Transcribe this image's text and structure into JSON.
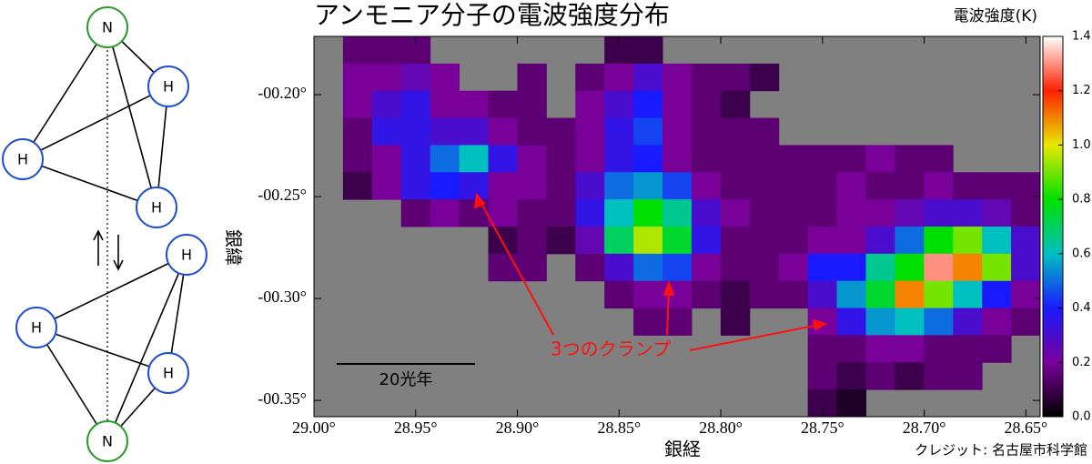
{
  "chart_data": {
    "type": "heatmap",
    "title": "アンモニア分子の電波強度分布",
    "colorbar_label": "電波強度(K)",
    "x_label": "銀経",
    "y_label": "銀緯",
    "credit": "クレジット: 名古屋市科学館",
    "scale_bar_label": "20光年",
    "annotation": "3つのクランプ",
    "xlim": [
      29.0,
      28.643
    ],
    "ylim": [
      -0.358,
      -0.1714
    ],
    "xticks": [
      {
        "value": 29.0,
        "label": "29.00°"
      },
      {
        "value": 28.95,
        "label": "28.95°"
      },
      {
        "value": 28.9,
        "label": "28.90°"
      },
      {
        "value": 28.85,
        "label": "28.85°"
      },
      {
        "value": 28.8,
        "label": "28.80°"
      },
      {
        "value": 28.75,
        "label": "28.75°"
      },
      {
        "value": 28.7,
        "label": "28.70°"
      },
      {
        "value": 28.65,
        "label": "28.65°"
      }
    ],
    "yticks": [
      {
        "value": -0.2,
        "label": "-00.20°"
      },
      {
        "value": -0.25,
        "label": "-00.25°"
      },
      {
        "value": -0.3,
        "label": "-00.30°"
      },
      {
        "value": -0.35,
        "label": "-00.35°"
      }
    ],
    "clim": [
      0,
      1.4
    ],
    "cticks": [
      {
        "value": 0,
        "label": "0.0"
      },
      {
        "value": 0.2,
        "label": "0.2"
      },
      {
        "value": 0.4,
        "label": "0.4"
      },
      {
        "value": 0.6,
        "label": "0.6"
      },
      {
        "value": 0.8,
        "label": "0.8"
      },
      {
        "value": 1.0,
        "label": "1.0"
      },
      {
        "value": 1.2,
        "label": "1.2"
      },
      {
        "value": 1.4,
        "label": "1.4"
      }
    ],
    "colors": [
      "#000000",
      "#7a009a",
      "#1a1aff",
      "#00c0c0",
      "#00e000",
      "#e8e800",
      "#ff2000",
      "#ffffff"
    ],
    "background": "#808080",
    "z": [
      [
        null,
        0.15,
        0.15,
        0.15,
        null,
        null,
        null,
        null,
        null,
        null,
        0.1,
        0.1,
        null,
        null,
        null,
        null,
        null,
        null,
        null,
        null,
        null,
        null,
        null,
        null,
        null
      ],
      [
        null,
        0.2,
        0.2,
        0.25,
        0.2,
        null,
        null,
        0.15,
        null,
        0.15,
        0.2,
        0.3,
        0.2,
        0.15,
        0.15,
        0.1,
        null,
        null,
        null,
        null,
        null,
        null,
        null,
        null,
        null
      ],
      [
        null,
        0.2,
        0.3,
        0.35,
        0.2,
        0.2,
        0.15,
        0.15,
        null,
        0.2,
        0.3,
        0.4,
        0.2,
        0.15,
        0.1,
        null,
        null,
        null,
        null,
        null,
        null,
        null,
        null,
        null,
        null
      ],
      [
        null,
        0.15,
        0.35,
        0.35,
        0.3,
        0.3,
        0.2,
        0.15,
        0.15,
        0.2,
        0.35,
        0.45,
        0.2,
        0.15,
        0.15,
        0.15,
        null,
        null,
        null,
        null,
        null,
        null,
        null,
        null,
        null
      ],
      [
        null,
        0.15,
        0.2,
        0.35,
        0.5,
        0.6,
        0.35,
        0.2,
        0.15,
        0.2,
        0.35,
        0.4,
        0.2,
        0.15,
        0.15,
        0.15,
        0.15,
        0.15,
        0.15,
        0.2,
        0.15,
        0.15,
        null,
        null,
        null
      ],
      [
        null,
        0.1,
        0.2,
        0.35,
        0.4,
        0.35,
        0.2,
        0.2,
        0.15,
        0.3,
        0.5,
        0.55,
        0.45,
        0.2,
        0.15,
        0.15,
        0.15,
        0.15,
        0.2,
        0.15,
        0.15,
        0.2,
        0.15,
        0.15,
        0.15
      ],
      [
        null,
        null,
        null,
        0.15,
        0.2,
        0.15,
        0.2,
        0.15,
        0.15,
        0.35,
        0.6,
        0.8,
        0.65,
        0.3,
        0.2,
        0.15,
        0.15,
        0.15,
        0.2,
        0.2,
        0.25,
        0.3,
        0.3,
        0.25,
        0.15
      ],
      [
        null,
        null,
        null,
        null,
        null,
        null,
        0.1,
        0.15,
        0.1,
        0.25,
        0.7,
        0.95,
        0.75,
        0.35,
        0.15,
        0.15,
        0.15,
        0.2,
        0.2,
        0.3,
        0.5,
        0.8,
        0.9,
        0.6,
        0.3
      ],
      [
        null,
        null,
        null,
        null,
        null,
        null,
        0.15,
        0.15,
        null,
        0.15,
        0.3,
        0.5,
        0.45,
        0.2,
        0.15,
        0.15,
        0.2,
        0.4,
        0.4,
        0.65,
        0.8,
        1.3,
        1.1,
        0.9,
        0.3
      ],
      [
        null,
        null,
        null,
        null,
        null,
        null,
        null,
        null,
        null,
        null,
        0.15,
        0.2,
        0.2,
        0.15,
        0.1,
        0.15,
        0.15,
        0.3,
        0.55,
        0.75,
        1.1,
        0.9,
        0.6,
        0.4,
        0.2
      ],
      [
        null,
        null,
        null,
        null,
        null,
        null,
        null,
        null,
        null,
        null,
        null,
        0.15,
        0.15,
        null,
        0.1,
        null,
        null,
        0.2,
        0.35,
        0.55,
        0.6,
        0.5,
        0.3,
        0.2,
        0.15
      ],
      [
        null,
        null,
        null,
        null,
        null,
        null,
        null,
        null,
        null,
        null,
        null,
        null,
        null,
        null,
        null,
        null,
        null,
        0.15,
        0.15,
        0.2,
        0.2,
        0.15,
        0.15,
        0.15,
        null
      ],
      [
        null,
        null,
        null,
        null,
        null,
        null,
        null,
        null,
        null,
        null,
        null,
        null,
        null,
        null,
        null,
        null,
        null,
        0.15,
        0.1,
        0.15,
        0.1,
        0.15,
        0.15,
        null,
        null
      ],
      [
        null,
        null,
        null,
        null,
        null,
        null,
        null,
        null,
        null,
        null,
        null,
        null,
        null,
        null,
        null,
        null,
        null,
        0.1,
        0.05,
        null,
        null,
        null,
        null,
        null,
        null
      ]
    ]
  },
  "molecule_diagram": {
    "nodes": [
      "N",
      "H",
      "H",
      "H",
      "H",
      "H",
      "H",
      "N"
    ]
  }
}
